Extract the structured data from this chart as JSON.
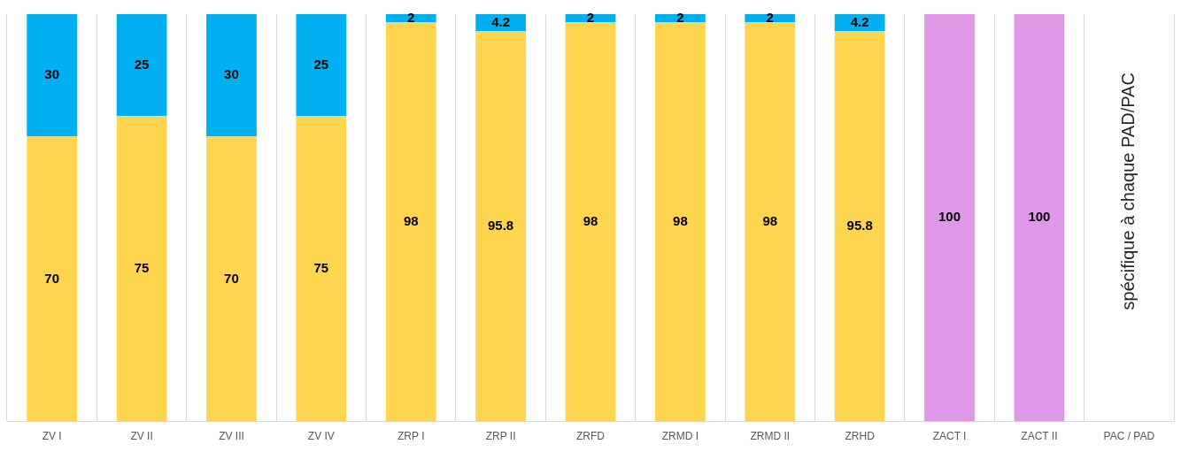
{
  "chart_data": {
    "type": "bar",
    "stacked": true,
    "categories": [
      "ZV I",
      "ZV II",
      "ZV III",
      "ZV IV",
      "ZRP I",
      "ZRP II",
      "ZRFD",
      "ZRMD I",
      "ZRMD II",
      "ZRHD",
      "ZACT I",
      "ZACT II",
      "PAC / PAD"
    ],
    "series": [
      {
        "color": "#ffd54f",
        "values": [
          70,
          75,
          70,
          75,
          98,
          95.8,
          98,
          98,
          98,
          95.8,
          null,
          null,
          null
        ]
      },
      {
        "color": "#00b0f0",
        "values": [
          30,
          25,
          30,
          25,
          2,
          4.2,
          2,
          2,
          2,
          4.2,
          null,
          null,
          null
        ]
      },
      {
        "color": "#df97e8",
        "values": [
          null,
          null,
          null,
          null,
          null,
          null,
          null,
          null,
          null,
          null,
          100,
          100,
          null
        ]
      }
    ],
    "ylim": [
      0,
      100
    ],
    "tick_labels": "x",
    "grid": "x",
    "data_labels": true,
    "legend": false,
    "annotations": [
      "spécifique à chaque PAD/PAC"
    ]
  }
}
